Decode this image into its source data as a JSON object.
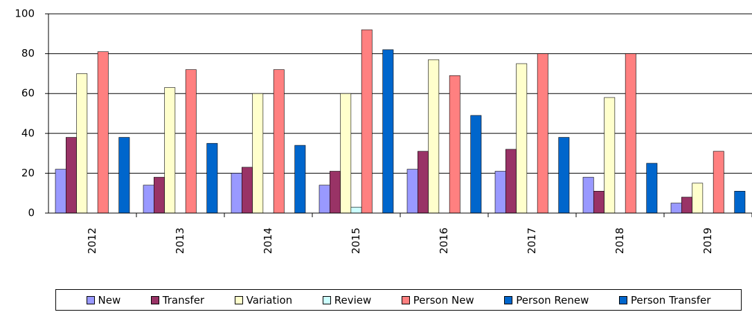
{
  "chart_data": {
    "type": "bar",
    "categories": [
      "2012",
      "2013",
      "2014",
      "2015",
      "2016",
      "2017",
      "2018",
      "2019"
    ],
    "series": [
      {
        "name": "New",
        "color": "#9999ff",
        "values": [
          22,
          14,
          20,
          14,
          22,
          21,
          18,
          5
        ]
      },
      {
        "name": "Transfer",
        "color": "#993366",
        "values": [
          38,
          18,
          23,
          21,
          31,
          32,
          11,
          8
        ]
      },
      {
        "name": "Variation",
        "color": "#ffffcc",
        "values": [
          70,
          63,
          60,
          60,
          77,
          75,
          58,
          15
        ]
      },
      {
        "name": "Review",
        "color": "#ccffff",
        "values": [
          0,
          0,
          0,
          3,
          0,
          0,
          0,
          0
        ]
      },
      {
        "name": "Person New",
        "color": "#ff8080",
        "values": [
          81,
          72,
          72,
          92,
          69,
          80,
          80,
          31
        ]
      },
      {
        "name": "Person Renew",
        "color": "#0066cc",
        "values": [
          0,
          0,
          0,
          0,
          0,
          0,
          0,
          0
        ]
      },
      {
        "name": "Person Transfer",
        "color": "#0066cc",
        "values": [
          38,
          35,
          34,
          82,
          49,
          38,
          25,
          11
        ]
      }
    ],
    "ylim": [
      0,
      100
    ],
    "yticks": [
      0,
      20,
      40,
      60,
      80,
      100
    ],
    "grid": true,
    "legend": "bottom"
  }
}
